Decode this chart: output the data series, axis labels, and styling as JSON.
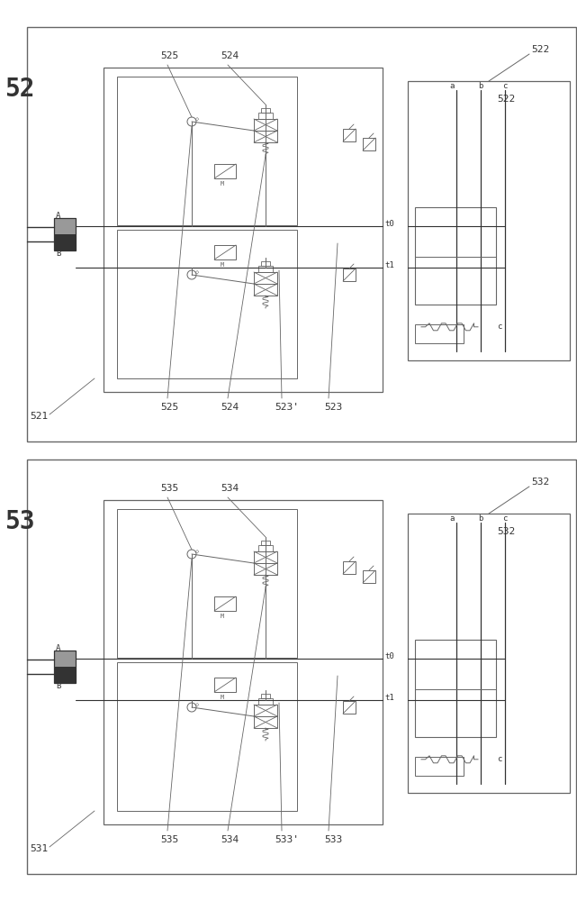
{
  "bg_color": "#ffffff",
  "lc": "#666666",
  "dc": "#333333",
  "lc2": "#444444",
  "label_52": "52",
  "label_53": "53",
  "label_521": "521",
  "label_522": "522",
  "label_523": "523",
  "label_523p": "523'",
  "label_524": "524",
  "label_525": "525",
  "label_531": "531",
  "label_532": "532",
  "label_533": "533",
  "label_533p": "533'",
  "label_534": "534",
  "label_535": "535",
  "fs_big": 20,
  "fs_med": 8,
  "fs_sm": 6.5
}
